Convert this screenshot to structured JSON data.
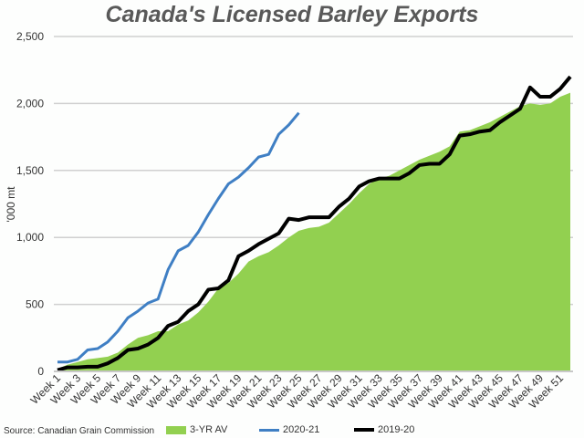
{
  "chart_data": {
    "type": "line",
    "title": "Canada's Licensed Barley Exports",
    "ylabel": "'000 mt",
    "xlabel": "",
    "ylim": [
      0,
      2500
    ],
    "yticks": [
      "0",
      "500",
      "1,000",
      "1,500",
      "2,000",
      "2,500"
    ],
    "ytick_values": [
      0,
      500,
      1000,
      1500,
      2000,
      2500
    ],
    "grid": true,
    "legend_position": "bottom",
    "x_tick_labels": [
      "Week 1",
      "Week 3",
      "Week 5",
      "Week 7",
      "Week 9",
      "Week 11",
      "Week 13",
      "Week 15",
      "Week 17",
      "Week 19",
      "Week 21",
      "Week 23",
      "Week 25",
      "Week 27",
      "Week 29",
      "Week 31",
      "Week 33",
      "Week 35",
      "Week 37",
      "Week 39",
      "Week 41",
      "Week 43",
      "Week 45",
      "Week 47",
      "Week 49",
      "Week 51"
    ],
    "weeks": 52,
    "series": [
      {
        "name": "3-YR AV",
        "type": "area",
        "color": "#92d050",
        "values": [
          20,
          50,
          70,
          90,
          100,
          110,
          140,
          200,
          250,
          270,
          300,
          300,
          350,
          380,
          440,
          520,
          620,
          660,
          730,
          820,
          860,
          890,
          940,
          1000,
          1050,
          1070,
          1080,
          1110,
          1180,
          1250,
          1330,
          1400,
          1440,
          1460,
          1500,
          1540,
          1580,
          1610,
          1640,
          1680,
          1790,
          1800,
          1830,
          1860,
          1900,
          1940,
          1980,
          2000,
          1990,
          2000,
          2050,
          2080
        ]
      },
      {
        "name": "2020-21",
        "type": "line",
        "color": "#3f7fc4",
        "values": [
          70,
          70,
          90,
          160,
          170,
          220,
          300,
          400,
          450,
          510,
          540,
          760,
          900,
          940,
          1040,
          1170,
          1290,
          1400,
          1450,
          1520,
          1600,
          1620,
          1770,
          1840,
          1930
        ]
      },
      {
        "name": "2019-20",
        "type": "line",
        "color": "#000000",
        "values": [
          10,
          30,
          30,
          35,
          35,
          60,
          100,
          160,
          170,
          200,
          250,
          340,
          370,
          450,
          500,
          610,
          620,
          680,
          860,
          900,
          950,
          990,
          1030,
          1140,
          1130,
          1150,
          1150,
          1150,
          1230,
          1290,
          1380,
          1420,
          1440,
          1440,
          1440,
          1480,
          1540,
          1550,
          1550,
          1620,
          1760,
          1770,
          1790,
          1800,
          1860,
          1910,
          1960,
          2120,
          2050,
          2050,
          2110,
          2200
        ]
      }
    ],
    "source": "Source: Canadian Grain Commission"
  }
}
